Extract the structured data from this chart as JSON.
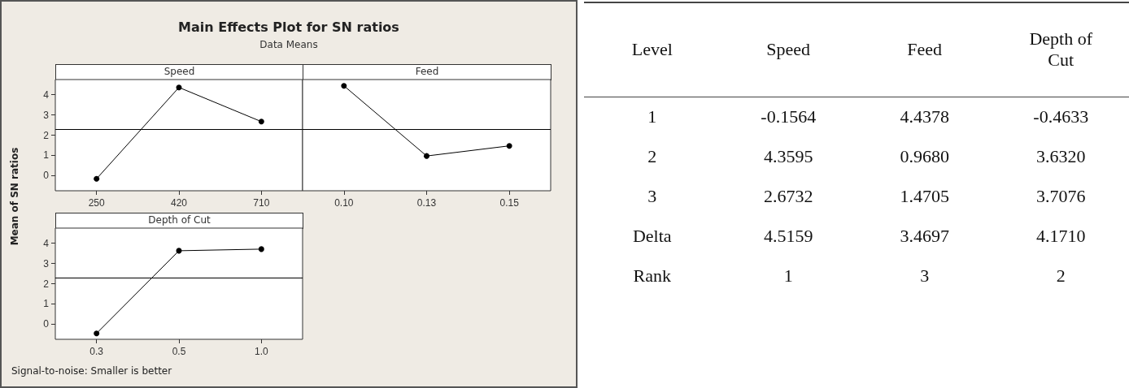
{
  "chart_data": [
    {
      "type": "line",
      "title": "Main Effects Plot for SN ratios",
      "subtitle": "Data Means",
      "xlabel": "Speed",
      "ylabel": "Mean of SN ratios",
      "categories": [
        "250",
        "420",
        "710"
      ],
      "series": [
        {
          "color": "#000000",
          "values": [
            -0.16,
            4.36,
            2.67
          ]
        }
      ],
      "ylim": [
        -0.75,
        4.75
      ],
      "yticks": [
        0,
        1,
        2,
        3,
        4
      ],
      "ref_lines": [
        {
          "axis": "y",
          "value": 2.29,
          "color": "#000000"
        }
      ],
      "marker": "circle",
      "line_style": "solid",
      "grid": false
    },
    {
      "type": "line",
      "xlabel": "Feed",
      "categories": [
        "0.10",
        "0.13",
        "0.15"
      ],
      "series": [
        {
          "color": "#000000",
          "values": [
            4.44,
            0.97,
            1.47
          ]
        }
      ],
      "ylim": [
        -0.75,
        4.75
      ],
      "yticks": [
        0,
        1,
        2,
        3,
        4
      ],
      "tick_labels": "x",
      "ref_lines": [
        {
          "axis": "y",
          "value": 2.29,
          "color": "#000000"
        }
      ],
      "marker": "circle",
      "line_style": "solid",
      "grid": false
    },
    {
      "type": "line",
      "xlabel": "Depth of Cut",
      "categories": [
        "0.3",
        "0.5",
        "1.0"
      ],
      "series": [
        {
          "color": "#000000",
          "values": [
            -0.46,
            3.63,
            3.71
          ]
        }
      ],
      "ylim": [
        -0.75,
        4.75
      ],
      "yticks": [
        0,
        1,
        2,
        3,
        4
      ],
      "ref_lines": [
        {
          "axis": "y",
          "value": 2.29,
          "color": "#000000"
        }
      ],
      "marker": "circle",
      "line_style": "solid",
      "grid": false,
      "annotations": [
        "Signal-to-noise: Smaller is better"
      ]
    },
    {
      "type": "other",
      "ylabel": "Level",
      "categories": [
        "Speed",
        "Feed",
        "Depth of Cut"
      ],
      "y_categories": [
        "1",
        "2",
        "3",
        "Delta",
        "Rank"
      ],
      "cell_labels": [
        [
          "-0.1564",
          "4.4378",
          "-0.4633"
        ],
        [
          "4.3595",
          "0.9680",
          "3.6320"
        ],
        [
          "2.6732",
          "1.4705",
          "3.7076"
        ],
        [
          "4.5159",
          "3.4697",
          "4.1710"
        ],
        [
          "1",
          "3",
          "2"
        ]
      ]
    }
  ]
}
